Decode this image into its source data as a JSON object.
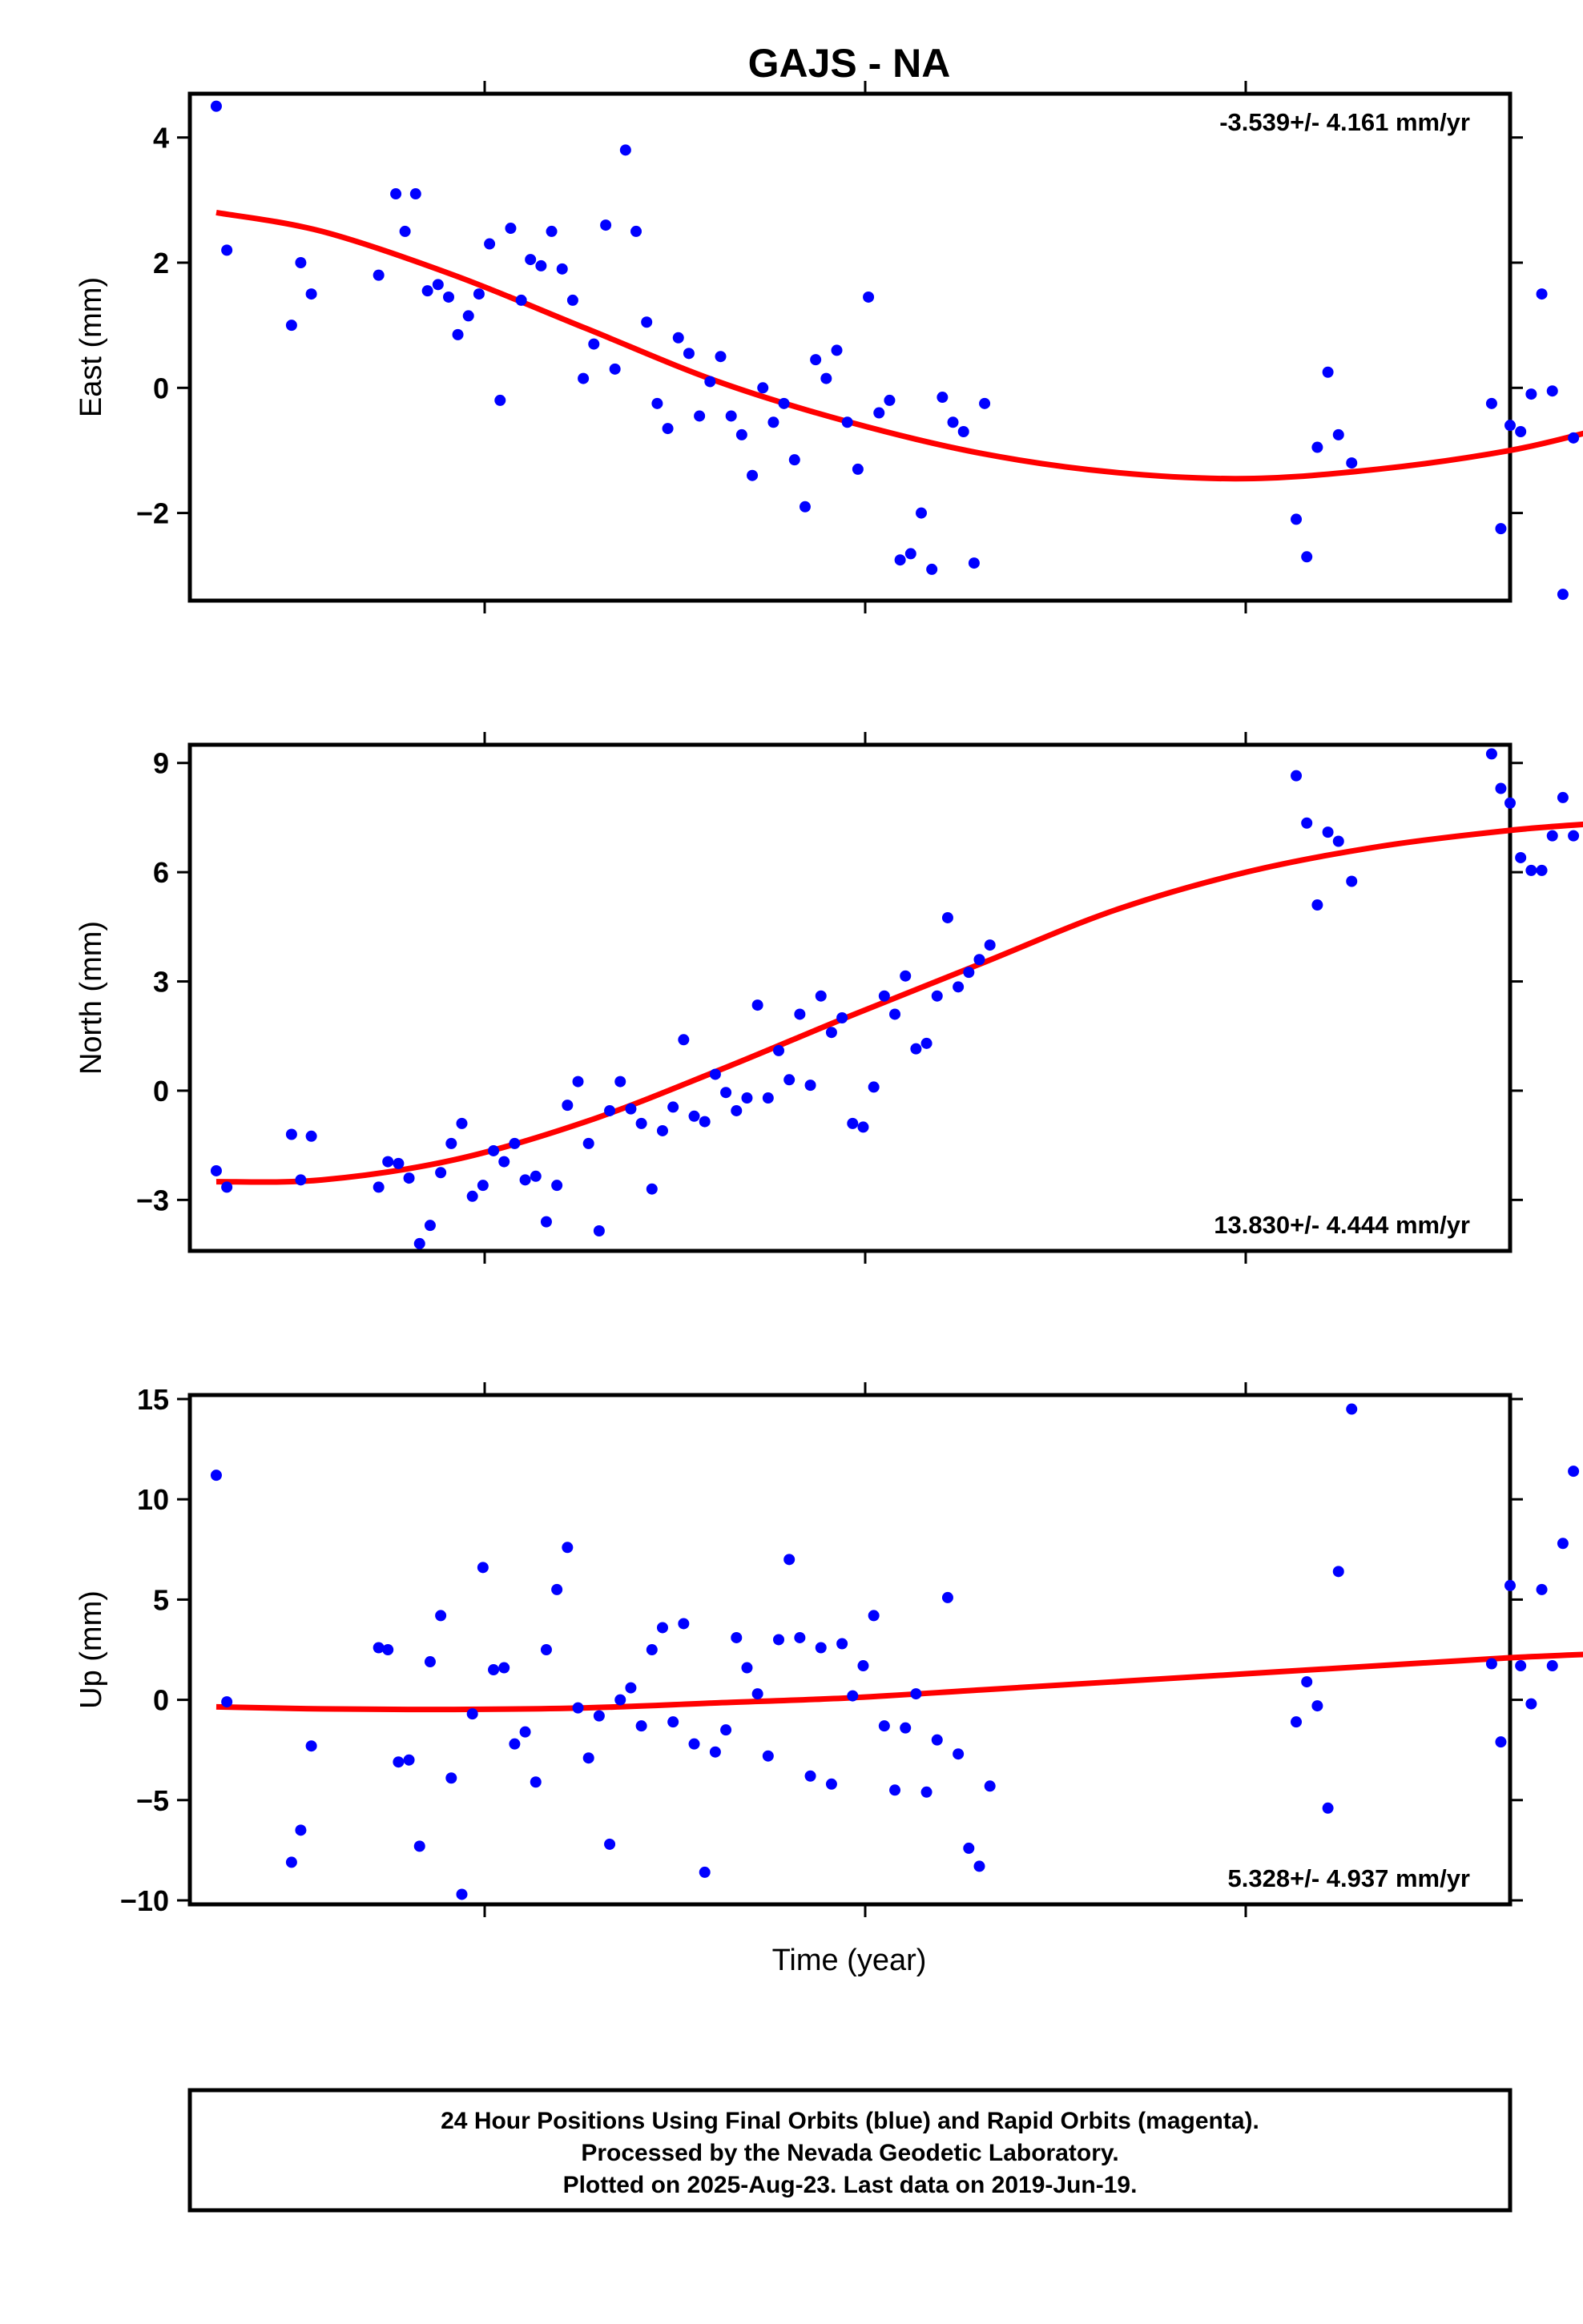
{
  "chart_data": {
    "title": "GAJS - NA",
    "xlabel": "Time (year)",
    "point_color": "#0000ff",
    "fit_color": "#ff0000",
    "xlim": [
      0,
      1000
    ],
    "panels": [
      {
        "type": "scatter",
        "ylabel": "East (mm)",
        "rate_text": "-3.539+/- 4.161 mm/yr",
        "rate_position": "top-right",
        "ylim": [
          -3.4,
          4.7
        ],
        "yticks": [
          {
            "v": 4,
            "label": "4"
          },
          {
            "v": 2,
            "label": "2"
          },
          {
            "v": 0,
            "label": "0"
          },
          {
            "v": -2,
            "label": "−2"
          }
        ],
        "x": [
          20,
          28,
          77,
          84,
          92,
          143,
          156,
          163,
          171,
          180,
          188,
          196,
          203,
          211,
          219,
          227,
          235,
          243,
          251,
          258,
          266,
          274,
          282,
          290,
          298,
          306,
          315,
          322,
          330,
          338,
          346,
          354,
          362,
          370,
          378,
          386,
          394,
          402,
          410,
          418,
          426,
          434,
          442,
          450,
          458,
          466,
          474,
          482,
          490,
          498,
          506,
          514,
          522,
          530,
          538,
          546,
          554,
          562,
          570,
          578,
          586,
          594,
          602,
          838,
          846,
          854,
          862,
          870,
          880,
          986,
          993,
          1000,
          1008,
          1016,
          1024,
          1032,
          1040,
          1048
        ],
        "y": [
          4.5,
          2.2,
          1.0,
          2.0,
          1.5,
          1.8,
          3.1,
          2.5,
          3.1,
          1.55,
          1.65,
          1.45,
          0.85,
          1.15,
          1.5,
          2.3,
          -0.2,
          2.55,
          1.4,
          2.05,
          1.95,
          2.5,
          1.9,
          1.4,
          0.15,
          0.7,
          2.6,
          0.3,
          3.8,
          2.5,
          1.05,
          -0.25,
          -0.65,
          0.8,
          0.55,
          -0.45,
          0.1,
          0.5,
          -0.45,
          -0.75,
          -1.4,
          0.0,
          -0.55,
          -0.25,
          -1.15,
          -1.9,
          0.45,
          0.15,
          0.6,
          -0.55,
          -1.3,
          1.45,
          -0.4,
          -0.2,
          -2.75,
          -2.65,
          -2.0,
          -2.9,
          -0.15,
          -0.55,
          -0.7,
          -2.8,
          -0.25,
          -2.1,
          -2.7,
          -0.95,
          0.25,
          -0.75,
          -1.2,
          -0.25,
          -2.25,
          -0.6,
          -0.7,
          -0.1,
          1.5,
          -0.05,
          -3.3,
          -0.8
        ],
        "fit_x": [
          20,
          100,
          200,
          300,
          400,
          500,
          600,
          700,
          800,
          900,
          1000,
          1070
        ],
        "fit_y": [
          2.8,
          2.5,
          1.8,
          0.95,
          0.1,
          -0.55,
          -1.05,
          -1.35,
          -1.45,
          -1.3,
          -1.0,
          -0.65
        ]
      },
      {
        "type": "scatter",
        "ylabel": "North (mm)",
        "rate_text": "13.830+/- 4.444 mm/yr",
        "rate_position": "bottom-right",
        "ylim": [
          -4.4,
          9.5
        ],
        "yticks": [
          {
            "v": 9,
            "label": "9"
          },
          {
            "v": 6,
            "label": "6"
          },
          {
            "v": 3,
            "label": "3"
          },
          {
            "v": 0,
            "label": "0"
          },
          {
            "v": -3,
            "label": "−3"
          }
        ],
        "x": [
          20,
          28,
          77,
          84,
          92,
          143,
          150,
          158,
          166,
          174,
          182,
          190,
          198,
          206,
          214,
          222,
          230,
          238,
          246,
          254,
          262,
          270,
          278,
          286,
          294,
          302,
          310,
          318,
          326,
          334,
          342,
          350,
          358,
          366,
          374,
          382,
          390,
          398,
          406,
          414,
          422,
          430,
          438,
          446,
          454,
          462,
          470,
          478,
          486,
          494,
          502,
          510,
          518,
          526,
          534,
          542,
          550,
          558,
          566,
          574,
          582,
          590,
          598,
          606,
          838,
          846,
          854,
          862,
          870,
          880,
          986,
          993,
          1000,
          1008,
          1016,
          1024,
          1032,
          1040,
          1048
        ],
        "y": [
          -2.2,
          -2.65,
          -1.2,
          -2.45,
          -1.25,
          -2.65,
          -1.95,
          -2.0,
          -2.4,
          -4.2,
          -3.7,
          -2.25,
          -1.45,
          -0.9,
          -2.9,
          -2.6,
          -1.65,
          -1.95,
          -1.45,
          -2.45,
          -2.35,
          -3.6,
          -2.6,
          -0.4,
          0.25,
          -1.45,
          -3.85,
          -0.55,
          0.25,
          -0.5,
          -0.9,
          -2.7,
          -1.1,
          -0.45,
          1.4,
          -0.7,
          -0.85,
          0.45,
          -0.05,
          -0.55,
          -0.2,
          2.35,
          -0.2,
          1.1,
          0.3,
          2.1,
          0.15,
          2.6,
          1.6,
          2.0,
          -0.9,
          -1.0,
          0.1,
          2.6,
          2.1,
          3.15,
          1.15,
          1.3,
          2.6,
          4.75,
          2.85,
          3.25,
          3.6,
          4.0,
          8.65,
          7.35,
          5.1,
          7.1,
          6.85,
          5.75,
          9.25,
          8.3,
          7.9,
          6.4,
          6.05,
          6.05,
          7.0,
          8.05,
          7.0
        ],
        "fit_x": [
          20,
          100,
          200,
          300,
          400,
          500,
          600,
          700,
          800,
          900,
          1000,
          1070
        ],
        "fit_y": [
          -2.5,
          -2.45,
          -1.9,
          -0.85,
          0.55,
          2.05,
          3.5,
          4.95,
          6.0,
          6.7,
          7.15,
          7.35
        ]
      },
      {
        "type": "scatter",
        "ylabel": "Up (mm)",
        "rate_text": "5.328+/- 4.937 mm/yr",
        "rate_position": "bottom-right",
        "ylim": [
          -10.2,
          15.2
        ],
        "yticks": [
          {
            "v": 15,
            "label": "15"
          },
          {
            "v": 10,
            "label": "10"
          },
          {
            "v": 5,
            "label": "5"
          },
          {
            "v": 0,
            "label": "0"
          },
          {
            "v": -5,
            "label": "−5"
          },
          {
            "v": -10,
            "label": "−10"
          }
        ],
        "x": [
          20,
          28,
          77,
          84,
          92,
          143,
          150,
          158,
          166,
          174,
          182,
          190,
          198,
          206,
          214,
          222,
          230,
          238,
          246,
          254,
          262,
          270,
          278,
          286,
          294,
          302,
          310,
          318,
          326,
          334,
          342,
          350,
          358,
          366,
          374,
          382,
          390,
          398,
          406,
          414,
          422,
          430,
          438,
          446,
          454,
          462,
          470,
          478,
          486,
          494,
          502,
          510,
          518,
          526,
          534,
          542,
          550,
          558,
          566,
          574,
          582,
          590,
          598,
          606,
          838,
          846,
          854,
          862,
          870,
          880,
          986,
          993,
          1000,
          1008,
          1016,
          1024,
          1032,
          1040,
          1048
        ],
        "y": [
          11.2,
          -0.1,
          -8.1,
          -6.5,
          -2.3,
          2.6,
          2.5,
          -3.1,
          -3.0,
          -7.3,
          1.9,
          4.2,
          -3.9,
          -9.7,
          -0.7,
          6.6,
          1.5,
          1.6,
          -2.2,
          -1.6,
          -4.1,
          2.5,
          5.5,
          7.6,
          -0.4,
          -2.9,
          -0.8,
          -7.2,
          0.0,
          0.6,
          -1.3,
          2.5,
          3.6,
          -1.1,
          3.8,
          -2.2,
          -8.6,
          -2.6,
          -1.5,
          3.1,
          1.6,
          0.3,
          -2.8,
          3.0,
          7.0,
          3.1,
          -3.8,
          2.6,
          -4.2,
          2.8,
          0.2,
          1.7,
          4.2,
          -1.3,
          -4.5,
          -1.4,
          0.3,
          -4.6,
          -2.0,
          5.1,
          -2.7,
          -7.4,
          -8.3,
          -4.3,
          -1.1,
          0.9,
          -0.3,
          -5.4,
          6.4,
          14.5,
          1.8,
          -2.1,
          5.7,
          1.7,
          -0.2,
          5.5,
          1.7,
          7.8,
          11.4
        ],
        "fit_x": [
          20,
          100,
          200,
          300,
          400,
          500,
          600,
          700,
          800,
          900,
          1000,
          1070
        ],
        "fit_y": [
          -0.35,
          -0.45,
          -0.48,
          -0.4,
          -0.15,
          0.1,
          0.5,
          0.9,
          1.3,
          1.7,
          2.1,
          2.3
        ]
      }
    ]
  },
  "footer": {
    "line1": "24 Hour Positions Using Final Orbits (blue) and Rapid Orbits (magenta).",
    "line2": "Processed by the Nevada Geodetic Laboratory.",
    "line3": "Plotted on 2025-Aug-23. Last data on 2019-Jun-19."
  }
}
